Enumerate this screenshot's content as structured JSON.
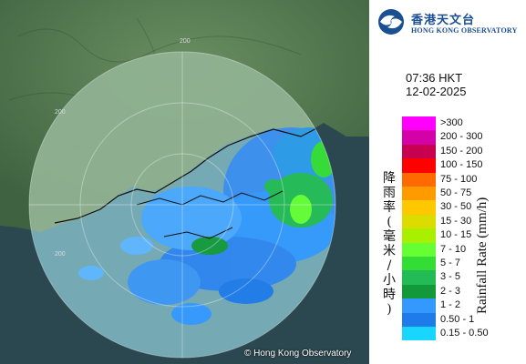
{
  "header": {
    "logo_zh": "香港天文台",
    "logo_en": "HONG KONG OBSERVATORY",
    "time": "07:36 HKT",
    "date": "12-02-2025"
  },
  "map": {
    "copyright": "© Hong Kong Observatory",
    "range_ring_labels": [
      "200",
      "200",
      "200"
    ],
    "colors": {
      "land": "#3f6b3f",
      "sea_in_range": "#9fd4e0",
      "sea_outside": "#2e4d55"
    }
  },
  "legend": {
    "title_zh": "降雨率(毫米/小時)",
    "title_en": "Rainfall Rate (mm/h)",
    "items": [
      {
        "label": ">300",
        "color": "#ff00ff"
      },
      {
        "label": "200 - 300",
        "color": "#d400a8"
      },
      {
        "label": "150 - 200",
        "color": "#c70050"
      },
      {
        "label": "100 - 150",
        "color": "#ff0000"
      },
      {
        "label": "75 - 100",
        "color": "#ff6a00"
      },
      {
        "label": "50 - 75",
        "color": "#ff9a00"
      },
      {
        "label": "30 - 50",
        "color": "#ffc800"
      },
      {
        "label": "15 - 30",
        "color": "#dcdc00"
      },
      {
        "label": "10 - 15",
        "color": "#a8f000"
      },
      {
        "label": "7 - 10",
        "color": "#66ff33"
      },
      {
        "label": "5 - 7",
        "color": "#33dd33"
      },
      {
        "label": "3 - 5",
        "color": "#22bb55"
      },
      {
        "label": "2 - 3",
        "color": "#129a3a"
      },
      {
        "label": "1 - 2",
        "color": "#3399ff"
      },
      {
        "label": "0.50 - 1",
        "color": "#1f7bea"
      },
      {
        "label": "0.15 - 0.50",
        "color": "#18d6ff"
      }
    ]
  }
}
